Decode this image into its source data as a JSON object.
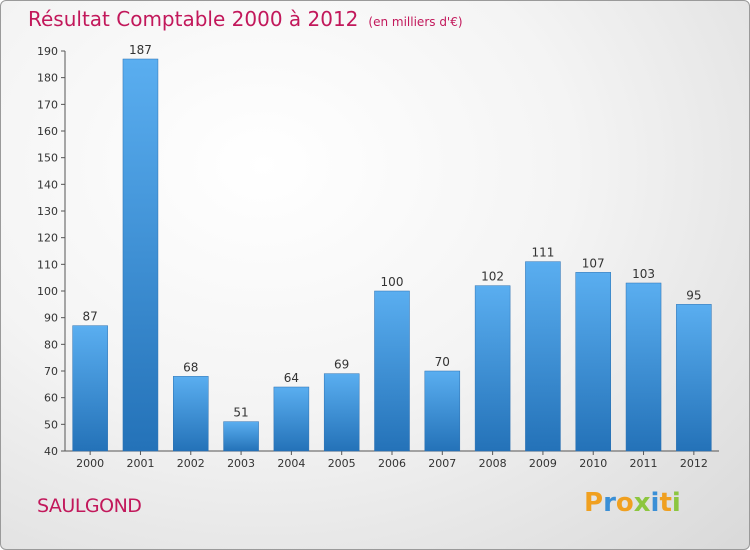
{
  "chart_data": {
    "type": "bar",
    "title": "Résultat Comptable 2000 à 2012",
    "subtitle": "(en milliers d'€)",
    "categories": [
      "2000",
      "2001",
      "2002",
      "2003",
      "2004",
      "2005",
      "2006",
      "2007",
      "2008",
      "2009",
      "2010",
      "2011",
      "2012"
    ],
    "values": [
      87,
      187,
      68,
      51,
      64,
      69,
      100,
      70,
      102,
      111,
      107,
      103,
      95
    ],
    "ylim": [
      40,
      190
    ],
    "yticks": [
      40,
      50,
      60,
      70,
      80,
      90,
      100,
      110,
      120,
      130,
      140,
      150,
      160,
      170,
      180,
      190
    ],
    "grid": false,
    "bar_color": "#3a8fd6"
  },
  "place_name": "SAULGOND",
  "logo": {
    "text": "Proxiti",
    "letters": [
      {
        "ch": "P",
        "color": "#f0a020"
      },
      {
        "ch": "r",
        "color": "#3a8fd6"
      },
      {
        "ch": "o",
        "color": "#f0a020"
      },
      {
        "ch": "x",
        "color": "#8cc63f"
      },
      {
        "ch": "i",
        "color": "#3a8fd6"
      },
      {
        "ch": "t",
        "color": "#f0a020"
      },
      {
        "ch": "i",
        "color": "#8cc63f"
      }
    ]
  }
}
